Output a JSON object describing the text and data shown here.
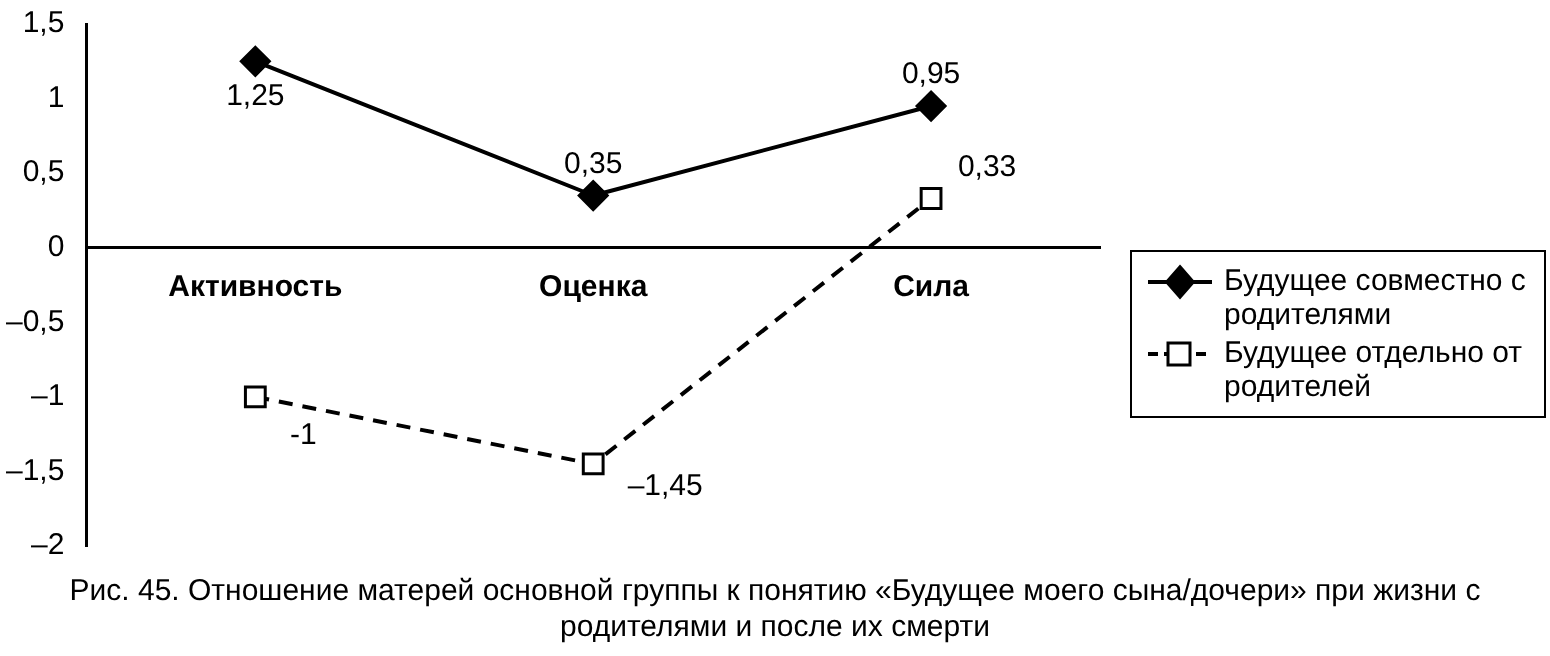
{
  "chart_data": {
    "type": "line",
    "title": "Рис. 45. Отношение матерей основной группы к понятию «Будущее моего сына/дочери» при жизни с родителями и после их смерти",
    "categories": [
      "Активность",
      "Оценка",
      "Сила"
    ],
    "series": [
      {
        "name": "Будущее совместно с родителями",
        "color": "#000000",
        "values": [
          1.25,
          0.35,
          0.95
        ],
        "value_labels": [
          "1,25",
          "0,35",
          "0,95"
        ],
        "marker": "diamond",
        "line_style": "solid"
      },
      {
        "name": "Будущее отдельно от родителей",
        "color": "#000000",
        "values": [
          -1,
          -1.45,
          0.33
        ],
        "value_labels": [
          "-1",
          "–1,45",
          "0,33"
        ],
        "marker": "square",
        "line_style": "dashed"
      }
    ],
    "ylim": [
      -2,
      1.5
    ],
    "yticks": [
      {
        "value": -2,
        "label": "–2"
      },
      {
        "value": -1.5,
        "label": "–1,5"
      },
      {
        "value": -1,
        "label": "–1"
      },
      {
        "value": -0.5,
        "label": "–0,5"
      },
      {
        "value": 0,
        "label": "0"
      },
      {
        "value": 0.5,
        "label": "0,5"
      },
      {
        "value": 1,
        "label": "1"
      },
      {
        "value": 1.5,
        "label": "1,5"
      }
    ],
    "grid": false,
    "legend": "right"
  }
}
